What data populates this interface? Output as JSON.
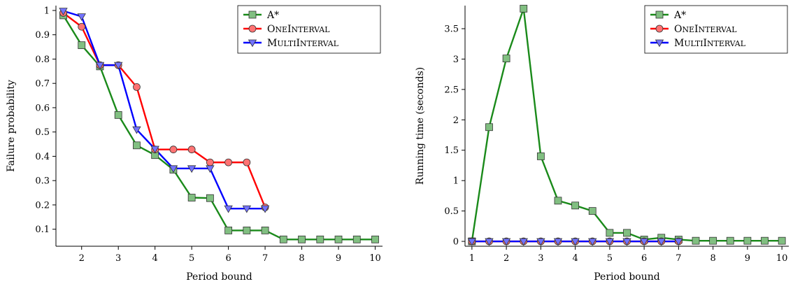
{
  "chart_data": [
    {
      "type": "line",
      "xlabel": "Period bound",
      "ylabel": "Failure probability",
      "xlim": [
        1.3,
        10.2
      ],
      "ylim": [
        0.03,
        1.02
      ],
      "xticks": [
        2,
        3,
        4,
        5,
        6,
        7,
        8,
        9,
        10
      ],
      "yticks": [
        0.1,
        0.2,
        0.3,
        0.4,
        0.5,
        0.6,
        0.7,
        0.8,
        0.9,
        1
      ],
      "ytick_labels": [
        "0.1",
        "0.2",
        "0.3",
        "0.4",
        "0.5",
        "0.6",
        "0.7",
        "0.8",
        "0.9",
        "1"
      ],
      "legend_position": "top-right",
      "series": [
        {
          "name": "A*",
          "color": "#1a8a1a",
          "marker": "square",
          "x": [
            1.5,
            2,
            2.5,
            3,
            3.5,
            4,
            4.5,
            5,
            5.5,
            6,
            6.5,
            7,
            7.5,
            8,
            8.5,
            9,
            9.5,
            10
          ],
          "y": [
            0.98,
            0.857,
            0.77,
            0.57,
            0.445,
            0.405,
            0.345,
            0.23,
            0.228,
            0.095,
            0.095,
            0.095,
            0.058,
            0.058,
            0.058,
            0.058,
            0.058,
            0.058
          ]
        },
        {
          "name": "OneInterval",
          "color": "#ff0000",
          "marker": "circle",
          "x": [
            1.5,
            2,
            2.5,
            3,
            3.5,
            4,
            4.5,
            5,
            5.5,
            6,
            6.5,
            7
          ],
          "y": [
            0.99,
            0.933,
            0.775,
            0.775,
            0.685,
            0.428,
            0.428,
            0.428,
            0.375,
            0.375,
            0.375,
            0.19
          ]
        },
        {
          "name": "MultiInterval",
          "color": "#0000ff",
          "marker": "triangle",
          "x": [
            1.5,
            2,
            2.5,
            3,
            3.5,
            4,
            4.5,
            5,
            5.5,
            6,
            6.5,
            7
          ],
          "y": [
            0.998,
            0.975,
            0.775,
            0.775,
            0.51,
            0.43,
            0.35,
            0.35,
            0.35,
            0.185,
            0.185,
            0.185
          ]
        }
      ]
    },
    {
      "type": "line",
      "xlabel": "Period bound",
      "ylabel": "Running time (seconds)",
      "xlim": [
        0.8,
        10.2
      ],
      "ylim": [
        -0.08,
        3.88
      ],
      "xticks": [
        1,
        2,
        3,
        4,
        5,
        6,
        7,
        8,
        9,
        10
      ],
      "yticks": [
        0,
        0.5,
        1,
        1.5,
        2,
        2.5,
        3,
        3.5
      ],
      "ytick_labels": [
        "0",
        "0.5",
        "1",
        "1.5",
        "2",
        "2.5",
        "3",
        "3.5"
      ],
      "legend_position": "top-right",
      "series": [
        {
          "name": "A*",
          "color": "#1a8a1a",
          "marker": "square",
          "x": [
            1,
            1.5,
            2,
            2.5,
            3,
            3.5,
            4,
            4.5,
            5,
            5.5,
            6,
            6.5,
            7,
            7.5,
            8,
            8.5,
            9,
            9.5,
            10
          ],
          "y": [
            0,
            1.88,
            3.01,
            3.83,
            1.4,
            0.67,
            0.59,
            0.5,
            0.14,
            0.14,
            0.03,
            0.06,
            0.03,
            0.01,
            0.01,
            0.01,
            0.01,
            0.01,
            0.01
          ]
        },
        {
          "name": "OneInterval",
          "color": "#ff0000",
          "marker": "circle",
          "x": [
            1,
            1.5,
            2,
            2.5,
            3,
            3.5,
            4,
            4.5,
            5,
            5.5,
            6,
            6.5,
            7
          ],
          "y": [
            0,
            0,
            0,
            0,
            0,
            0,
            0,
            0,
            0,
            0,
            0,
            0,
            0
          ]
        },
        {
          "name": "MultiInterval",
          "color": "#0000ff",
          "marker": "triangle",
          "x": [
            1,
            1.5,
            2,
            2.5,
            3,
            3.5,
            4,
            4.5,
            5,
            5.5,
            6,
            6.5,
            7
          ],
          "y": [
            0,
            0,
            0,
            0,
            0,
            0,
            0,
            0,
            0,
            0,
            0,
            0,
            0
          ]
        }
      ]
    }
  ]
}
